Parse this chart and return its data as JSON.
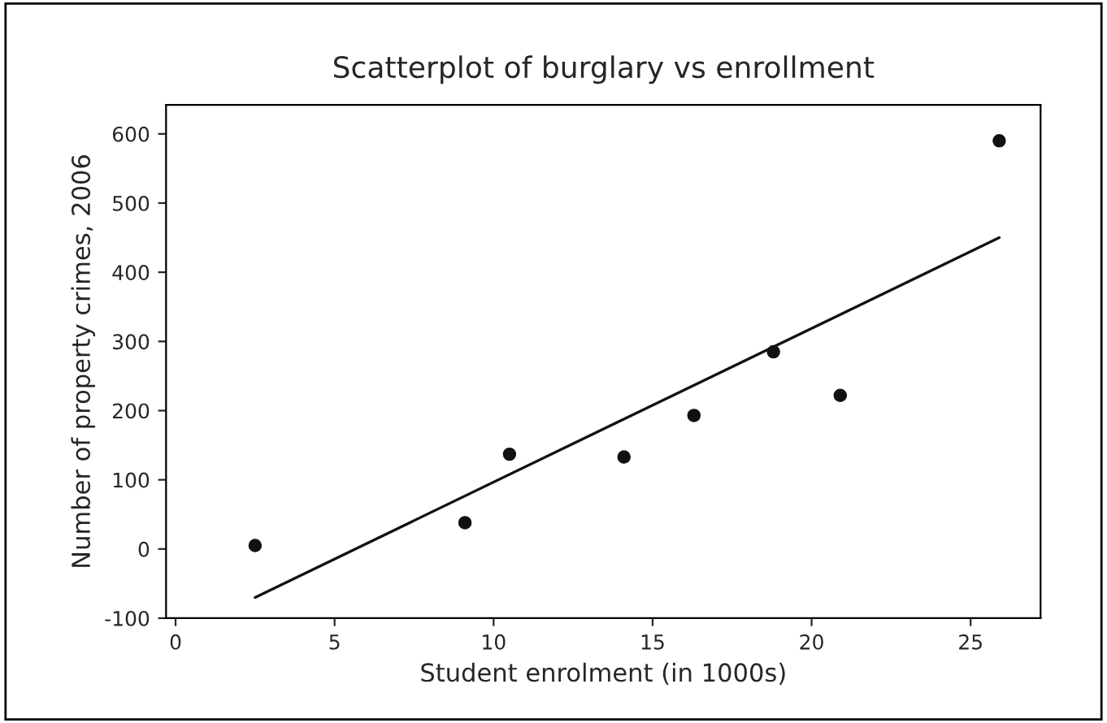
{
  "chart_data": {
    "type": "scatter",
    "title": "Scatterplot of burglary vs enrollment",
    "xlabel": "Student enrolment (in 1000s)",
    "ylabel": "Number of property crimes, 2006",
    "xlim": [
      -0.3,
      27.2
    ],
    "ylim": [
      -100,
      642
    ],
    "xticks": [
      0,
      5,
      10,
      15,
      20,
      25
    ],
    "yticks": [
      -100,
      0,
      100,
      200,
      300,
      400,
      500,
      600
    ],
    "grid": false,
    "marker": "circle",
    "series": [
      {
        "color": "#111111",
        "x": [
          2.5,
          9.1,
          10.5,
          14.1,
          16.3,
          18.8,
          20.9,
          25.9
        ],
        "values": [
          5,
          38,
          137,
          133,
          193,
          285,
          222,
          590
        ]
      },
      {
        "type": "line",
        "color": "#111111",
        "marker": "none",
        "line_style": "solid",
        "x": [
          2.5,
          25.9
        ],
        "values": [
          -70,
          450
        ]
      }
    ]
  }
}
